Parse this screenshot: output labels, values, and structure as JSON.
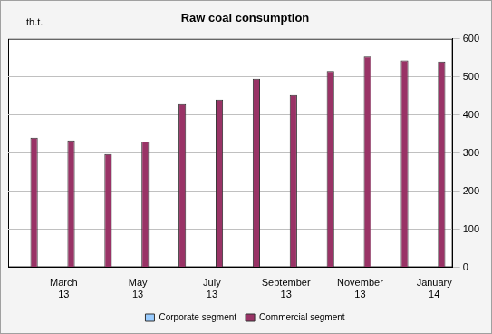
{
  "chart_data": {
    "type": "bar",
    "title": "Raw coal consumption",
    "y_label": "th.t.",
    "categories": [
      null,
      "March 13",
      null,
      "May 13",
      null,
      "July 13",
      null,
      "September 13",
      null,
      "November 13",
      null,
      "January 14"
    ],
    "series": [
      {
        "name": "Corporate segment",
        "color": "#99ccff",
        "values": [
          0,
          0,
          0,
          0,
          0,
          0,
          0,
          0,
          0,
          0,
          0,
          0
        ]
      },
      {
        "name": "Commercial segment",
        "color": "#993366",
        "values": [
          340,
          333,
          297,
          330,
          428,
          440,
          495,
          452,
          515,
          553,
          543,
          540
        ]
      }
    ],
    "ylim": [
      0,
      600
    ],
    "yticks": [
      0,
      100,
      200,
      300,
      400,
      500,
      600
    ],
    "grid": true,
    "legend": "bottom"
  }
}
